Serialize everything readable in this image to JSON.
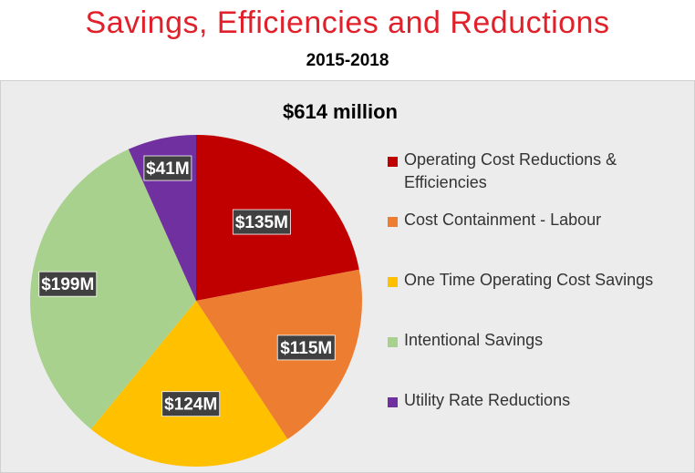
{
  "header": {
    "title": "Savings, Efficiencies and Reductions",
    "subtitle": "2015-2018"
  },
  "chart_data": {
    "type": "pie",
    "title": "$614 million",
    "start_angle_deg": 0,
    "direction": "clockwise",
    "legend_position": "right",
    "slices": [
      {
        "name": "Operating Cost Reductions & Efficiencies",
        "value": 135,
        "label": "$135M",
        "color": "#c00000"
      },
      {
        "name": "Cost Containment - Labour",
        "value": 115,
        "label": "$115M",
        "color": "#ed7d31"
      },
      {
        "name": "One Time Operating Cost Savings",
        "value": 124,
        "label": "$124M",
        "color": "#ffc000"
      },
      {
        "name": "Intentional Savings",
        "value": 199,
        "label": "$199M",
        "color": "#a9d18e"
      },
      {
        "name": "Utility Rate Reductions",
        "value": 41,
        "label": "$41M",
        "color": "#7030a0"
      }
    ]
  }
}
